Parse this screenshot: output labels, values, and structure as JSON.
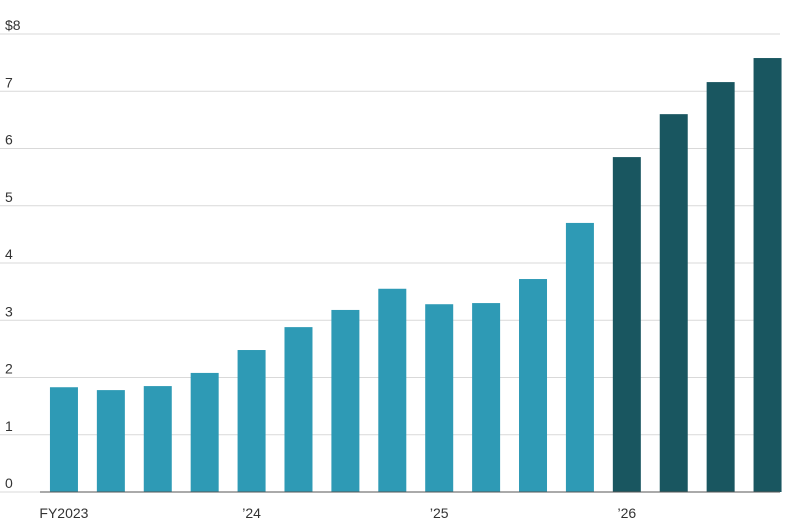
{
  "chart_data": {
    "type": "bar",
    "categories": [
      "FY2023",
      null,
      null,
      null,
      "’24",
      null,
      null,
      null,
      "’25",
      null,
      null,
      null,
      "’26",
      null,
      null,
      null
    ],
    "values": [
      1.83,
      1.78,
      1.85,
      2.08,
      2.48,
      2.88,
      3.18,
      3.55,
      3.28,
      3.3,
      3.72,
      4.7,
      5.85,
      6.6,
      7.16,
      7.58
    ],
    "colors": [
      "#2e9ab5",
      "#2e9ab5",
      "#2e9ab5",
      "#2e9ab5",
      "#2e9ab5",
      "#2e9ab5",
      "#2e9ab5",
      "#2e9ab5",
      "#2e9ab5",
      "#2e9ab5",
      "#2e9ab5",
      "#2e9ab5",
      "#195660",
      "#195660",
      "#195660",
      "#195660"
    ],
    "ylim": [
      0,
      8
    ],
    "yticks": [
      0,
      1,
      2,
      3,
      4,
      5,
      6,
      7,
      {
        "value": 8,
        "label": "$8"
      }
    ],
    "grid": true
  }
}
